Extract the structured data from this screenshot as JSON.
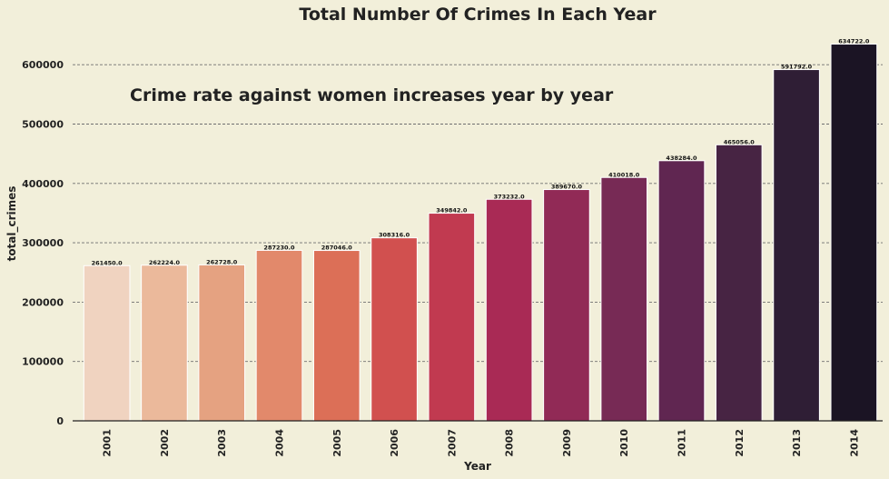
{
  "chart_data": {
    "type": "bar",
    "title": "Total Number Of Crimes In Each Year",
    "annotation": "Crime rate against women increases year by year",
    "xlabel": "Year",
    "ylabel": "total_crimes",
    "categories": [
      "2001",
      "2002",
      "2003",
      "2004",
      "2005",
      "2006",
      "2007",
      "2008",
      "2009",
      "2010",
      "2011",
      "2012",
      "2013",
      "2014"
    ],
    "values": [
      261450,
      262224,
      262728,
      287230,
      287046,
      308316,
      349842,
      373232,
      389670,
      410018,
      438284,
      465056,
      591792,
      634722
    ],
    "value_labels": [
      "261450.0",
      "262224.0",
      "262728.0",
      "287230.0",
      "287046.0",
      "308316.0",
      "349842.0",
      "373232.0",
      "389670.0",
      "410018.0",
      "438284.0",
      "465056.0",
      "591792.0",
      "634722.0"
    ],
    "yticks": [
      0,
      100000,
      200000,
      300000,
      400000,
      500000,
      600000
    ],
    "ytick_labels": [
      "0",
      "100000",
      "200000",
      "300000",
      "400000",
      "500000",
      "600000"
    ],
    "ylim": [
      0,
      650000
    ],
    "grid": true,
    "colors": [
      "#f0d3c0",
      "#ebb99b",
      "#e5a281",
      "#e2896b",
      "#dc6f57",
      "#d1504f",
      "#c13a50",
      "#a92a55",
      "#912a56",
      "#772a55",
      "#602651",
      "#472443",
      "#2f1e35",
      "#1b1424"
    ],
    "background": "#f2efda"
  }
}
